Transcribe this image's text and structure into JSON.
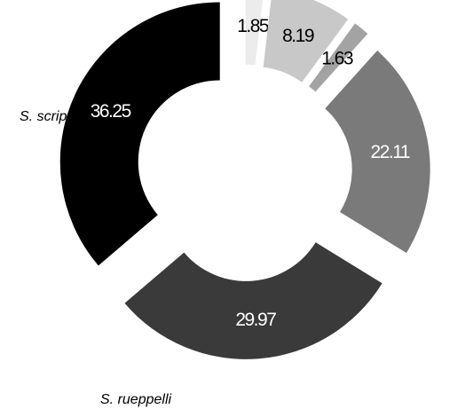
{
  "chart_data": {
    "type": "pie",
    "variant": "exploded-donut",
    "title": "",
    "slices": [
      {
        "value": 1.85,
        "label": "1.85",
        "category": "",
        "color": "#ececec",
        "text_color": "#000000"
      },
      {
        "value": 8.19,
        "label": "8.19",
        "category": "",
        "color": "#c8c8c8",
        "text_color": "#000000"
      },
      {
        "value": 1.63,
        "label": "1.63",
        "category": "",
        "color": "#a3a3a3",
        "text_color": "#000000"
      },
      {
        "value": 22.11,
        "label": "22.11",
        "category": "",
        "color": "#7a7a7a",
        "text_color": "#ffffff"
      },
      {
        "value": 29.97,
        "label": "29.97",
        "category": "S. rueppelli",
        "color": "#3a3a3a",
        "text_color": "#ffffff"
      },
      {
        "value": 36.25,
        "label": "36.25",
        "category": "S. scripta",
        "color": "#000000",
        "text_color": "#ffffff"
      }
    ],
    "legend": "none"
  }
}
